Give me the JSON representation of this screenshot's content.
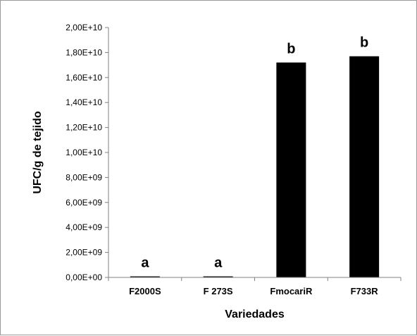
{
  "chart_data": {
    "type": "bar",
    "title": "",
    "xlabel": "Variedades",
    "ylabel": "UFC/g de tejido",
    "categories": [
      "F2000S",
      "F 273S",
      "FmocariR",
      "F733R"
    ],
    "values": [
      60000000,
      60000000,
      17200000000,
      17700000000
    ],
    "significance_labels": [
      "a",
      "a",
      "b",
      "b"
    ],
    "ylim": [
      0,
      20000000000
    ],
    "yticks": [
      {
        "value": 0,
        "label": "0,00E+00"
      },
      {
        "value": 2000000000,
        "label": "2,00E+09"
      },
      {
        "value": 4000000000,
        "label": "4,00E+09"
      },
      {
        "value": 6000000000,
        "label": "6,00E+09"
      },
      {
        "value": 8000000000,
        "label": "8,00E+09"
      },
      {
        "value": 10000000000,
        "label": "1,00E+10"
      },
      {
        "value": 12000000000,
        "label": "1,20E+10"
      },
      {
        "value": 14000000000,
        "label": "1,40E+10"
      },
      {
        "value": 16000000000,
        "label": "1,60E+10"
      },
      {
        "value": 18000000000,
        "label": "1,80E+10"
      },
      {
        "value": 20000000000,
        "label": "2,00E+10"
      }
    ],
    "grid": false,
    "legend": "none",
    "bar_color": "#000000",
    "axis_color": "#808080"
  }
}
